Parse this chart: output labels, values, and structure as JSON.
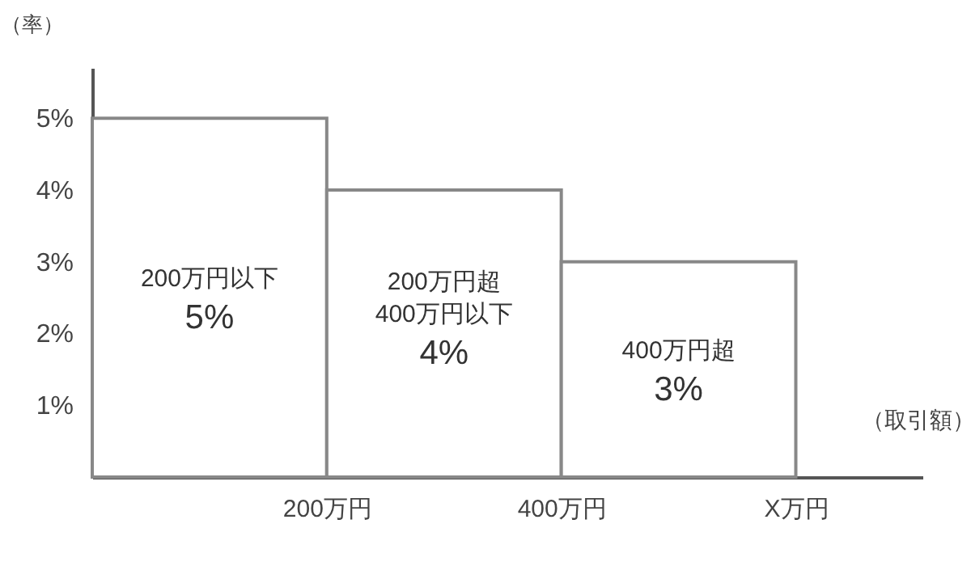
{
  "chart_data": {
    "type": "histogram",
    "xlabel": "（取引額）",
    "ylabel": "（率）",
    "bins": [
      0,
      200,
      400,
      600
    ],
    "values": [
      5,
      4,
      3
    ],
    "categories": [
      "200万円以下",
      "200万円超\n400万円以下",
      "400万円超"
    ],
    "value_labels": [
      "5%",
      "4%",
      "3%"
    ],
    "color": "#ffffff",
    "xlim": [
      0,
      708
    ],
    "xticks": [
      {
        "value": 200,
        "label": "200万円"
      },
      {
        "value": 400,
        "label": "400万円"
      },
      {
        "value": 600,
        "label": "X万円"
      }
    ],
    "ylim": [
      0,
      5.7
    ],
    "yticks": [
      {
        "value": 1,
        "label": "1%"
      },
      {
        "value": 2,
        "label": "2%"
      },
      {
        "value": 3,
        "label": "3%"
      },
      {
        "value": 4,
        "label": "4%"
      },
      {
        "value": 5,
        "label": "5%"
      }
    ],
    "grid": false
  }
}
